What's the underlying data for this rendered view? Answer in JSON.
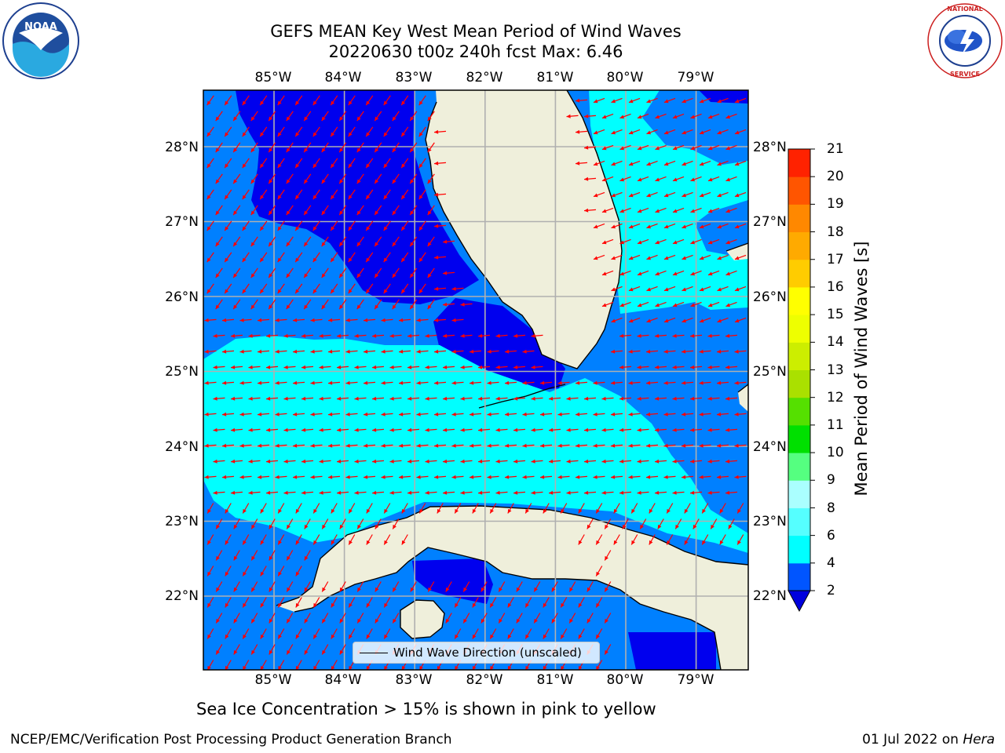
{
  "title_line1": "GEFS MEAN Key West Mean Period of Wind Waves",
  "title_line2": "20220630 t00z 240h fcst   Max: 6.46",
  "longitude_labels": [
    "85°W",
    "84°W",
    "83°W",
    "82°W",
    "81°W",
    "80°W",
    "79°W"
  ],
  "latitude_labels": [
    "28°N",
    "27°N",
    "26°N",
    "25°N",
    "24°N",
    "23°N",
    "22°N"
  ],
  "legend_label": "Wind Wave Direction (unscaled)",
  "colorbar": {
    "label": "Mean Period of Wind Waves [s]",
    "ticks": [
      "21",
      "20",
      "19",
      "18",
      "17",
      "16",
      "15",
      "14",
      "13",
      "12",
      "11",
      "10",
      "9",
      "8",
      "6",
      "4",
      "2"
    ],
    "levels": [
      2,
      4,
      6,
      8,
      9,
      10,
      11,
      12,
      13,
      14,
      15,
      16,
      17,
      18,
      19,
      20,
      21
    ],
    "colors": [
      "#0055ff",
      "#00ffff",
      "#55ffff",
      "#aaffff",
      "#55ff80",
      "#00e000",
      "#55e000",
      "#aae000",
      "#ccee00",
      "#eeff00",
      "#ffff00",
      "#ffcc00",
      "#ffaa00",
      "#ff8800",
      "#ff5500",
      "#ff2200",
      "#ff0000"
    ],
    "extend_color": "#0000dd"
  },
  "map_colors": {
    "land": "#efefdb",
    "band_2_4": "#0080ff",
    "band_under_2": "#0000ee",
    "band_4_6": "#00ffff",
    "arrows": "#ff0000",
    "grid": "#b0b0b0"
  },
  "note": "Sea Ice Concentration > 15% is shown in pink to yellow",
  "footer_left": "NCEP/EMC/Verification Post Processing Product Generation Branch",
  "footer_right_date": "01 Jul 2022 on ",
  "footer_right_host": "Hera",
  "logos": {
    "left": "noaa-logo",
    "right": "nws-logo"
  },
  "logo_text": {
    "noaa": "NOAA",
    "nws_outer": "NATIONAL WEATHER SERVICE"
  }
}
